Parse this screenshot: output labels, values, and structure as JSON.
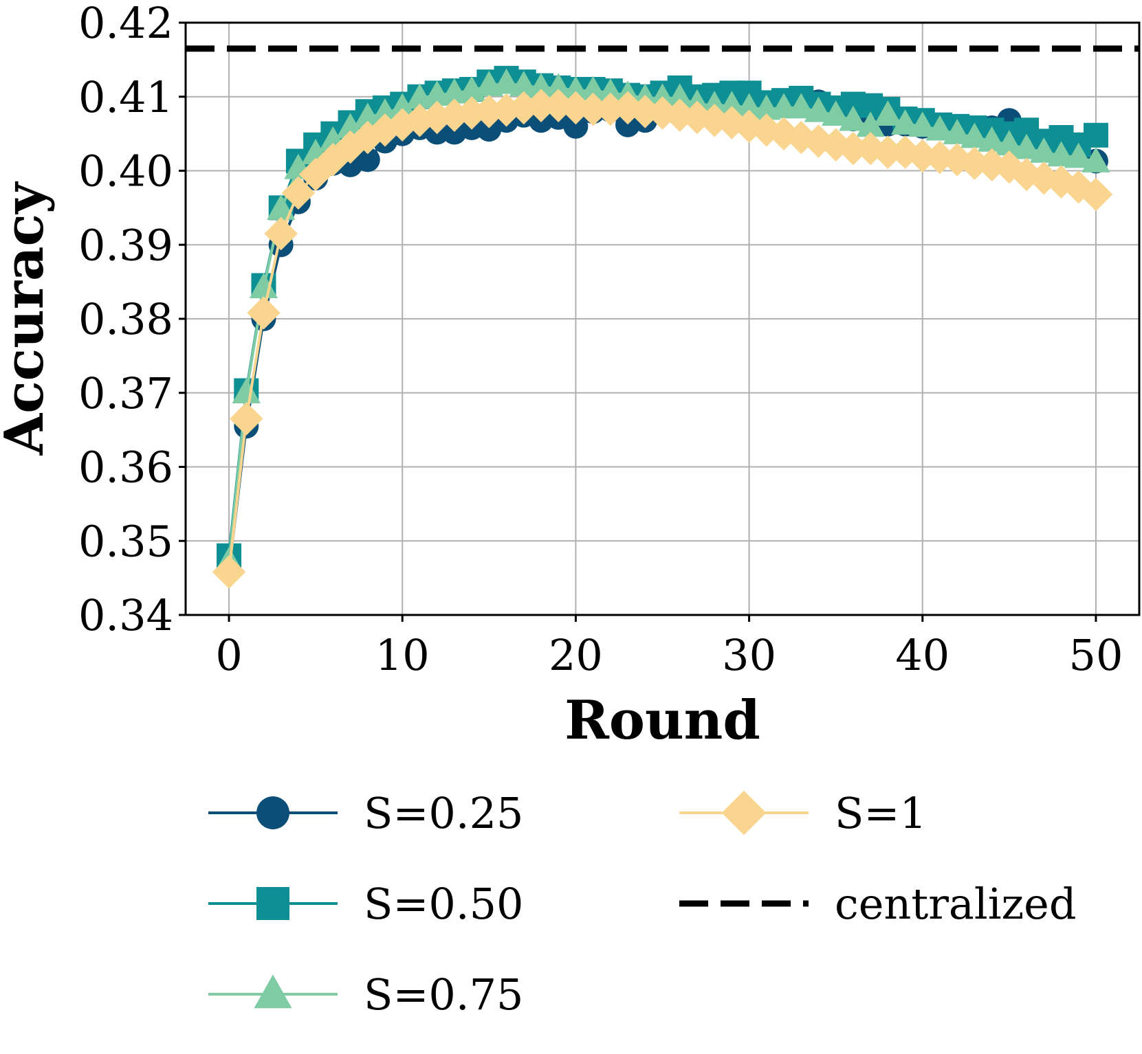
{
  "chart_data": {
    "type": "line",
    "xlabel": "Round",
    "ylabel": "Accuracy",
    "xlim": [
      -2.5,
      52.5
    ],
    "ylim": [
      0.34,
      0.42
    ],
    "xticks": [
      0,
      10,
      20,
      30,
      40,
      50
    ],
    "xtick_labels": [
      "0",
      "10",
      "20",
      "30",
      "40",
      "50"
    ],
    "yticks": [
      0.34,
      0.35,
      0.36,
      0.37,
      0.38,
      0.39,
      0.4,
      0.41,
      0.42
    ],
    "ytick_labels": [
      "0.34",
      "0.35",
      "0.36",
      "0.37",
      "0.38",
      "0.39",
      "0.40",
      "0.41",
      "0.42"
    ],
    "grid": true,
    "legend_position": "below",
    "x": [
      0,
      1,
      2,
      3,
      4,
      5,
      6,
      7,
      8,
      9,
      10,
      11,
      12,
      13,
      14,
      15,
      16,
      17,
      18,
      19,
      20,
      21,
      22,
      23,
      24,
      25,
      26,
      27,
      28,
      29,
      30,
      31,
      32,
      33,
      34,
      35,
      36,
      37,
      38,
      39,
      40,
      41,
      42,
      43,
      44,
      45,
      46,
      47,
      48,
      49,
      50
    ],
    "series": [
      {
        "name": "S=0.25",
        "color": "#0b4f79",
        "marker": "circle",
        "values": [
          0.346,
          0.3655,
          0.38,
          0.39,
          0.3958,
          0.399,
          0.401,
          0.4008,
          0.4015,
          0.404,
          0.405,
          0.4058,
          0.4052,
          0.4052,
          0.4058,
          0.4056,
          0.4068,
          0.4075,
          0.4068,
          0.4072,
          0.406,
          0.408,
          0.4082,
          0.4062,
          0.4068,
          0.4082,
          0.4085,
          0.409,
          0.4088,
          0.4093,
          0.4095,
          0.409,
          0.4092,
          0.409,
          0.4093,
          0.4085,
          0.407,
          0.4073,
          0.4063,
          0.4063,
          0.406,
          0.4058,
          0.4055,
          0.4053,
          0.4058,
          0.4068,
          0.4045,
          0.4035,
          0.4032,
          0.4035,
          0.4013
        ]
      },
      {
        "name": "S=0.50",
        "color": "#0e8f93",
        "marker": "square",
        "values": [
          0.348,
          0.3703,
          0.3845,
          0.395,
          0.4013,
          0.4035,
          0.405,
          0.4065,
          0.408,
          0.4085,
          0.409,
          0.41,
          0.4105,
          0.4108,
          0.411,
          0.412,
          0.4125,
          0.412,
          0.4115,
          0.4112,
          0.411,
          0.411,
          0.4108,
          0.4102,
          0.41,
          0.4105,
          0.4112,
          0.41,
          0.4102,
          0.4105,
          0.4105,
          0.4092,
          0.4095,
          0.4098,
          0.409,
          0.4085,
          0.409,
          0.4088,
          0.4083,
          0.407,
          0.4068,
          0.4062,
          0.406,
          0.4058,
          0.4055,
          0.405,
          0.4055,
          0.404,
          0.4045,
          0.4035,
          0.4048
        ]
      },
      {
        "name": "S=0.75",
        "color": "#7fcca4",
        "marker": "triangle",
        "values": [
          0.3472,
          0.37,
          0.3842,
          0.3948,
          0.4003,
          0.4023,
          0.404,
          0.4058,
          0.4072,
          0.4078,
          0.4085,
          0.4098,
          0.4102,
          0.4105,
          0.4108,
          0.4115,
          0.4118,
          0.4115,
          0.4112,
          0.4112,
          0.4108,
          0.4108,
          0.4105,
          0.4102,
          0.4098,
          0.4098,
          0.4098,
          0.409,
          0.4088,
          0.4088,
          0.4085,
          0.4083,
          0.4085,
          0.4085,
          0.408,
          0.4075,
          0.4068,
          0.406,
          0.4075,
          0.4063,
          0.406,
          0.4055,
          0.405,
          0.4045,
          0.404,
          0.4035,
          0.403,
          0.4025,
          0.402,
          0.4018,
          0.4012
        ]
      },
      {
        "name": "S=1",
        "color": "#fad58f",
        "marker": "diamond",
        "values": [
          0.3458,
          0.3665,
          0.3808,
          0.3915,
          0.397,
          0.3995,
          0.4015,
          0.4032,
          0.4045,
          0.4055,
          0.4062,
          0.4068,
          0.4072,
          0.4075,
          0.4078,
          0.408,
          0.4082,
          0.4085,
          0.4088,
          0.4088,
          0.4085,
          0.4083,
          0.4083,
          0.4085,
          0.408,
          0.4078,
          0.4075,
          0.4072,
          0.4068,
          0.4065,
          0.406,
          0.4055,
          0.405,
          0.4045,
          0.404,
          0.4035,
          0.403,
          0.403,
          0.4025,
          0.4025,
          0.402,
          0.4018,
          0.4015,
          0.401,
          0.4008,
          0.4005,
          0.3995,
          0.399,
          0.3985,
          0.3978,
          0.3968
        ]
      }
    ],
    "reference_line": {
      "name": "centralized",
      "value": 0.4165,
      "color": "#000000",
      "style": "dashed"
    }
  }
}
